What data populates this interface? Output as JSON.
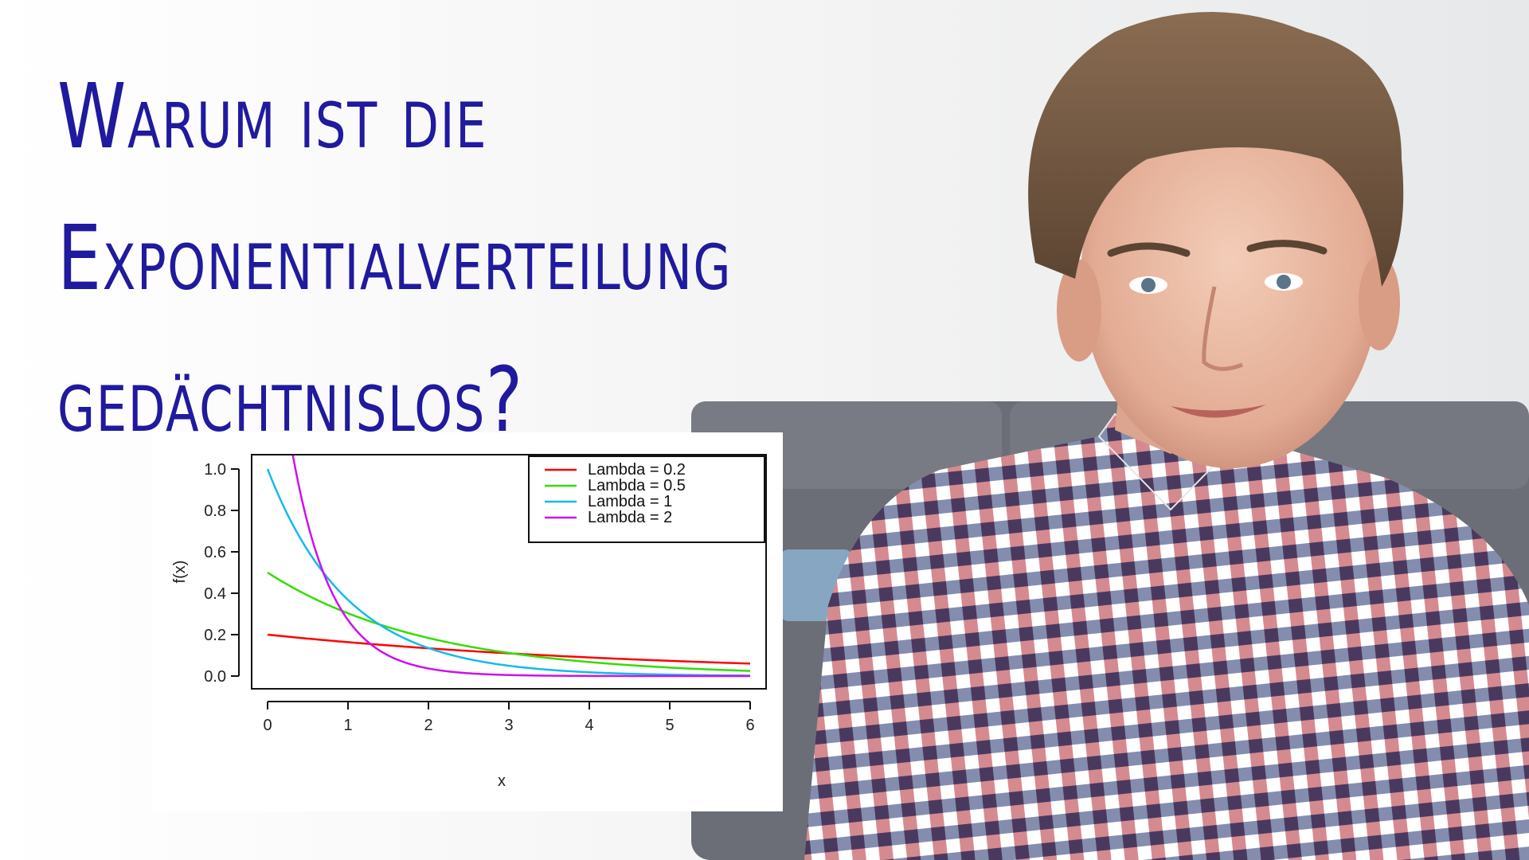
{
  "headline": {
    "line1": "Warum ist die",
    "line2": "Exponentialverteilung",
    "line3": "gedächtnislos?"
  },
  "colors": {
    "headline": "#1f1a9e",
    "wall": "#f4f4f4",
    "sofa": "#6b6e76",
    "shirt_red": "#b32a34",
    "shirt_navy": "#1e2f6b"
  },
  "chart_data": {
    "type": "line",
    "xlabel": "x",
    "ylabel": "f(x)",
    "xlim": [
      0,
      6
    ],
    "ylim": [
      0,
      1.0
    ],
    "x_ticks": [
      "0",
      "1",
      "2",
      "3",
      "4",
      "5",
      "6"
    ],
    "y_ticks": [
      "0.0",
      "0.2",
      "0.4",
      "0.6",
      "0.8",
      "1.0"
    ],
    "legend_position": "top-right",
    "series": [
      {
        "name": "Lambda = 0.2",
        "lambda": 0.2,
        "color": "#ff0000"
      },
      {
        "name": "Lambda = 0.5",
        "lambda": 0.5,
        "color": "#33dd00"
      },
      {
        "name": "Lambda = 1",
        "lambda": 1,
        "color": "#11bbee"
      },
      {
        "name": "Lambda = 2",
        "lambda": 2,
        "color": "#cc11ee"
      }
    ]
  }
}
